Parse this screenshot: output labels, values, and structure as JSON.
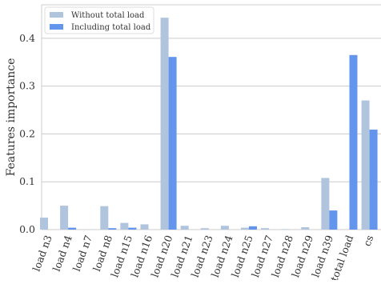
{
  "chart_data": {
    "type": "bar",
    "title": "",
    "xlabel": "",
    "ylabel": "Features importance",
    "ylim": [
      0,
      0.47
    ],
    "yticks": [
      "0.0",
      "0.1",
      "0.2",
      "0.3",
      "0.4"
    ],
    "ytick_values": [
      0,
      0.1,
      0.2,
      0.3,
      0.4
    ],
    "grid": "horizontal",
    "legend": "top-left",
    "categories": [
      "load n3",
      "load n4",
      "load n7",
      "load n8",
      "load n15",
      "load n16",
      "load n20",
      "load n21",
      "load n23",
      "load n24",
      "load n25",
      "load n27",
      "load n28",
      "load n29",
      "load n39",
      "total load",
      "cs"
    ],
    "series": [
      {
        "name": "Without total load",
        "color": "#b0c4de",
        "values": [
          0.025,
          0.05,
          0.0,
          0.049,
          0.014,
          0.011,
          0.443,
          0.008,
          0.003,
          0.008,
          0.004,
          0.003,
          0.001,
          0.005,
          0.108,
          null,
          0.27
        ]
      },
      {
        "name": "Including total load",
        "color": "#6495ed",
        "values": [
          0.0,
          0.004,
          0.0,
          0.003,
          0.004,
          0.0,
          0.361,
          0.0,
          0.0,
          0.0,
          0.007,
          0.0,
          0.0,
          0.0,
          0.04,
          0.365,
          0.209
        ]
      }
    ]
  }
}
